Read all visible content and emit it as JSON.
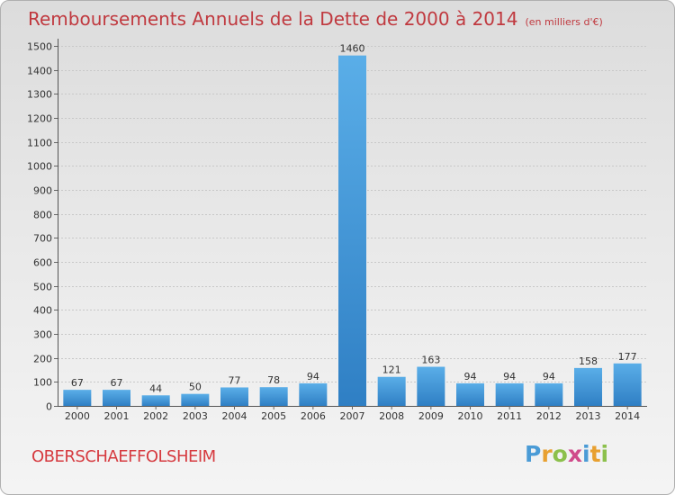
{
  "title": "Remboursements Annuels de la Dette de 2000 à 2014",
  "unit_note": "(en milliers d'€)",
  "commune": "OBERSCHAEFFOLSHEIM",
  "logo": {
    "text": "Proxiti",
    "letters": [
      {
        "ch": "P",
        "color": "#4a9bd6"
      },
      {
        "ch": "r",
        "color": "#e8a030"
      },
      {
        "ch": "o",
        "color": "#8cc04c"
      },
      {
        "ch": "x",
        "color": "#d04a8a"
      },
      {
        "ch": "i",
        "color": "#4a9bd6"
      },
      {
        "ch": "t",
        "color": "#e8a030"
      },
      {
        "ch": "i",
        "color": "#8cc04c"
      }
    ]
  },
  "chart_data": {
    "type": "bar",
    "title": "Remboursements Annuels de la Dette de 2000 à 2014",
    "categories": [
      "2000",
      "2001",
      "2002",
      "2003",
      "2004",
      "2005",
      "2006",
      "2007",
      "2008",
      "2009",
      "2010",
      "2011",
      "2012",
      "2013",
      "2014"
    ],
    "values": [
      67,
      67,
      44,
      50,
      77,
      78,
      94,
      1460,
      121,
      163,
      94,
      94,
      94,
      158,
      177
    ],
    "ylim": [
      0,
      1500
    ],
    "yticks": [
      0,
      100,
      200,
      300,
      400,
      500,
      600,
      700,
      800,
      900,
      1000,
      1100,
      1200,
      1300,
      1400,
      1500
    ],
    "xlabel": "",
    "ylabel": "",
    "grid": true,
    "bar_color": "#4a9fe0"
  }
}
